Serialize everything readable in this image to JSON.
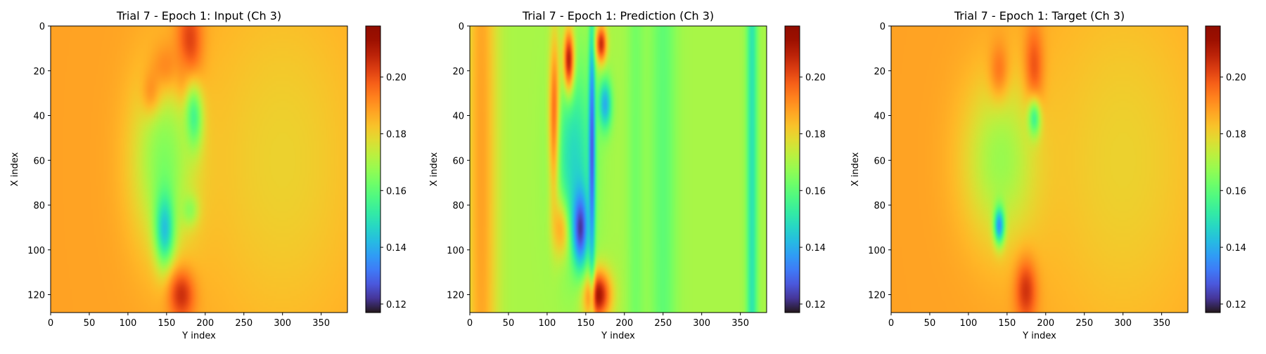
{
  "chart_data": [
    {
      "type": "heatmap",
      "title": "Trial 7 - Epoch 1: Input (Ch 3)",
      "xlabel": "Y index",
      "ylabel": "X index",
      "x_range": [
        0,
        384
      ],
      "y_range": [
        0,
        128
      ],
      "x_ticks": [
        0,
        50,
        100,
        150,
        200,
        250,
        300,
        350
      ],
      "y_ticks": [
        0,
        20,
        40,
        60,
        80,
        100,
        120
      ],
      "colorbar": {
        "min": 0.117,
        "max": 0.218,
        "ticks": [
          0.12,
          0.14,
          0.16,
          0.18,
          0.2
        ],
        "tick_labels": [
          "0.12",
          "0.14",
          "0.16",
          "0.18",
          "0.20"
        ],
        "colormap": "turbo"
      },
      "background_value": 0.188,
      "features": [
        {
          "x": 180,
          "y": 10,
          "sx": 12,
          "sy": 14,
          "v": 0.214
        },
        {
          "x": 150,
          "y": 22,
          "sx": 14,
          "sy": 9,
          "v": 0.21
        },
        {
          "x": 133,
          "y": 32,
          "sx": 9,
          "sy": 7,
          "v": 0.216
        },
        {
          "x": 170,
          "y": 26,
          "sx": 7,
          "sy": 7,
          "v": 0.208
        },
        {
          "x": 185,
          "y": 42,
          "sx": 8,
          "sy": 10,
          "v": 0.132
        },
        {
          "x": 150,
          "y": 60,
          "sx": 30,
          "sy": 28,
          "v": 0.162
        },
        {
          "x": 148,
          "y": 90,
          "sx": 9,
          "sy": 12,
          "v": 0.137
        },
        {
          "x": 180,
          "y": 82,
          "sx": 8,
          "sy": 5,
          "v": 0.16
        },
        {
          "x": 170,
          "y": 120,
          "sx": 12,
          "sy": 8,
          "v": 0.21
        },
        {
          "x": 300,
          "y": 60,
          "sx": 80,
          "sy": 60,
          "v": 0.18
        }
      ]
    },
    {
      "type": "heatmap",
      "title": "Trial 7 - Epoch 1: Prediction (Ch 3)",
      "xlabel": "Y index",
      "ylabel": "X index",
      "x_range": [
        0,
        384
      ],
      "y_range": [
        0,
        128
      ],
      "x_ticks": [
        0,
        50,
        100,
        150,
        200,
        250,
        300,
        350
      ],
      "y_ticks": [
        0,
        20,
        40,
        60,
        80,
        100,
        120
      ],
      "colorbar": {
        "min": 0.117,
        "max": 0.218,
        "ticks": [
          0.12,
          0.14,
          0.16,
          0.18,
          0.2
        ],
        "tick_labels": [
          "0.12",
          "0.14",
          "0.16",
          "0.18",
          "0.20"
        ],
        "colormap": "turbo"
      },
      "background_value": 0.17,
      "features": [
        {
          "x": 15,
          "y": 64,
          "sx": 14,
          "sy": 200,
          "v": 0.188
        },
        {
          "x": 365,
          "y": 64,
          "sx": 5,
          "sy": 200,
          "v": 0.15
        },
        {
          "x": 250,
          "y": 64,
          "sx": 12,
          "sy": 200,
          "v": 0.16
        },
        {
          "x": 215,
          "y": 64,
          "sx": 8,
          "sy": 200,
          "v": 0.163
        },
        {
          "x": 110,
          "y": 45,
          "sx": 5,
          "sy": 25,
          "v": 0.214
        },
        {
          "x": 120,
          "y": 88,
          "sx": 8,
          "sy": 10,
          "v": 0.21
        },
        {
          "x": 165,
          "y": 120,
          "sx": 12,
          "sy": 8,
          "v": 0.214
        },
        {
          "x": 135,
          "y": 60,
          "sx": 18,
          "sy": 30,
          "v": 0.148
        },
        {
          "x": 143,
          "y": 90,
          "sx": 7,
          "sy": 12,
          "v": 0.122
        },
        {
          "x": 158,
          "y": 55,
          "sx": 3,
          "sy": 40,
          "v": 0.127
        },
        {
          "x": 175,
          "y": 35,
          "sx": 6,
          "sy": 8,
          "v": 0.14
        },
        {
          "x": 128,
          "y": 15,
          "sx": 5,
          "sy": 10,
          "v": 0.208
        },
        {
          "x": 170,
          "y": 8,
          "sx": 5,
          "sy": 6,
          "v": 0.206
        }
      ]
    },
    {
      "type": "heatmap",
      "title": "Trial 7 - Epoch 1: Target (Ch 3)",
      "xlabel": "Y index",
      "ylabel": "X index",
      "x_range": [
        0,
        384
      ],
      "y_range": [
        0,
        128
      ],
      "x_ticks": [
        0,
        50,
        100,
        150,
        200,
        250,
        300,
        350
      ],
      "y_ticks": [
        0,
        20,
        40,
        60,
        80,
        100,
        120
      ],
      "colorbar": {
        "min": 0.117,
        "max": 0.218,
        "ticks": [
          0.12,
          0.14,
          0.16,
          0.18,
          0.2
        ],
        "tick_labels": [
          "0.12",
          "0.14",
          "0.16",
          "0.18",
          "0.20"
        ],
        "colormap": "turbo"
      },
      "background_value": 0.188,
      "features": [
        {
          "x": 185,
          "y": 22,
          "sx": 9,
          "sy": 14,
          "v": 0.214
        },
        {
          "x": 140,
          "y": 24,
          "sx": 9,
          "sy": 10,
          "v": 0.21
        },
        {
          "x": 185,
          "y": 42,
          "sx": 6,
          "sy": 6,
          "v": 0.128
        },
        {
          "x": 145,
          "y": 60,
          "sx": 35,
          "sy": 26,
          "v": 0.166
        },
        {
          "x": 140,
          "y": 89,
          "sx": 5,
          "sy": 6,
          "v": 0.13
        },
        {
          "x": 175,
          "y": 118,
          "sx": 10,
          "sy": 10,
          "v": 0.21
        },
        {
          "x": 300,
          "y": 60,
          "sx": 80,
          "sy": 60,
          "v": 0.18
        }
      ]
    }
  ]
}
